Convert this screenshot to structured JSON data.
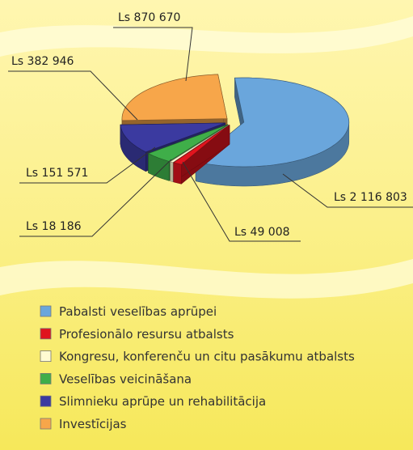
{
  "chart_data": {
    "type": "pie",
    "categories": [
      "Pabalsti veselības aprūpei",
      "Profesionālo resursu atbalsts",
      "Kongresu, konferenču un citu pasākumu atbalsts",
      "Veselības veicināšana",
      "Slimnieku aprūpe un rehabilitācija",
      "Investīcijas"
    ],
    "values": [
      2116803,
      49008,
      18186,
      151571,
      382946,
      870670
    ],
    "value_labels": [
      "Ls 2 116 803",
      "Ls 49 008",
      "Ls 18 186",
      "Ls 151 571",
      "Ls 382 946",
      "Ls 870 670"
    ],
    "colors": [
      "#6aa6dc",
      "#e0141e",
      "#fffbd2",
      "#3fae49",
      "#3b3aa0",
      "#f7a64a"
    ],
    "legend": true
  }
}
